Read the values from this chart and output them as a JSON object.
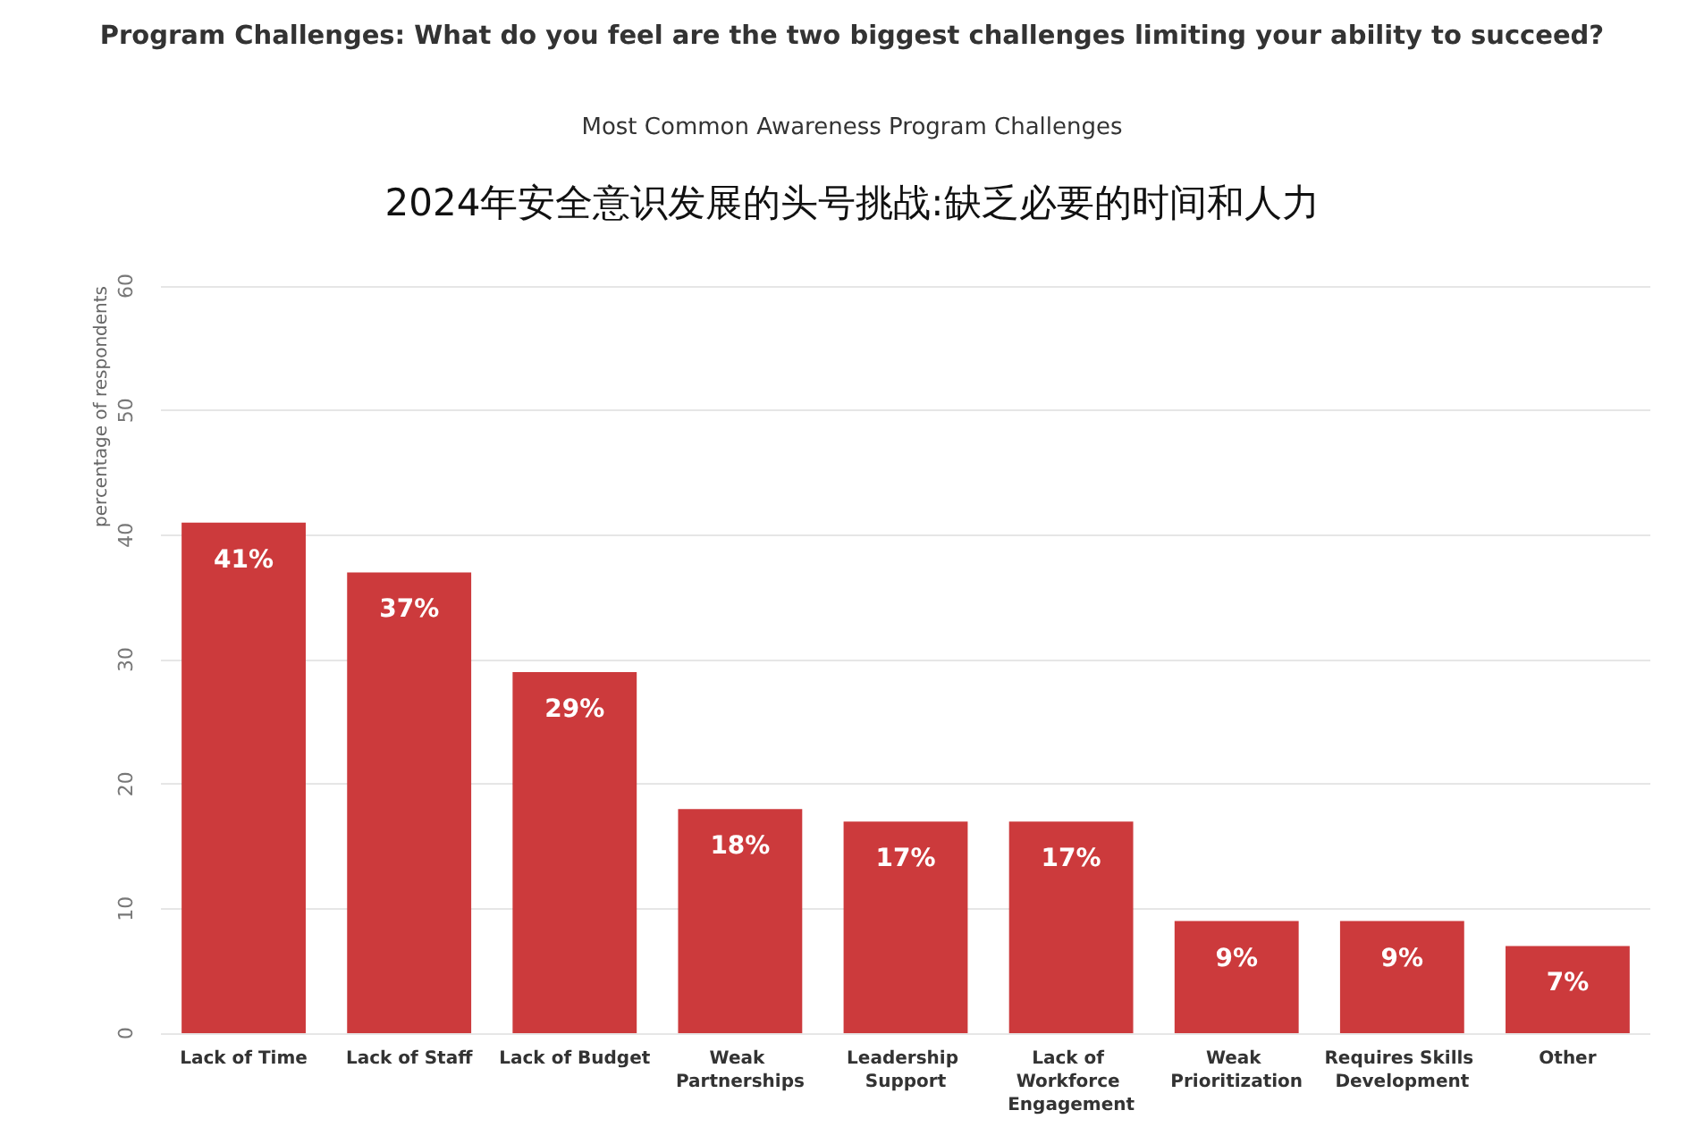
{
  "chart_data": {
    "type": "bar",
    "title": "Program Challenges: What do you feel are the two biggest challenges limiting your ability to succeed?",
    "subtitle": "Most Common Awareness Program Challenges",
    "annotations": [
      "2024年安全意识发展的头号挑战:缺乏必要的时间和人力"
    ],
    "ylabel": "percentage of respondents",
    "categories": [
      "Lack of Time",
      "Lack of Staff",
      "Lack of Budget",
      "Weak Partnerships",
      "Leadership Support",
      "Lack of Workforce Engagement",
      "Weak Prioritization",
      "Requires Skills Development",
      "Other"
    ],
    "values": [
      41,
      37,
      29,
      18,
      17,
      17,
      9,
      9,
      7
    ],
    "value_labels": [
      "41%",
      "37%",
      "29%",
      "18%",
      "17%",
      "17%",
      "9%",
      "9%",
      "7%"
    ],
    "color": "#cc3a3c",
    "ylim": [
      0,
      60
    ],
    "yticks": [
      0,
      10,
      20,
      30,
      40,
      50,
      60
    ],
    "grid": "y"
  }
}
